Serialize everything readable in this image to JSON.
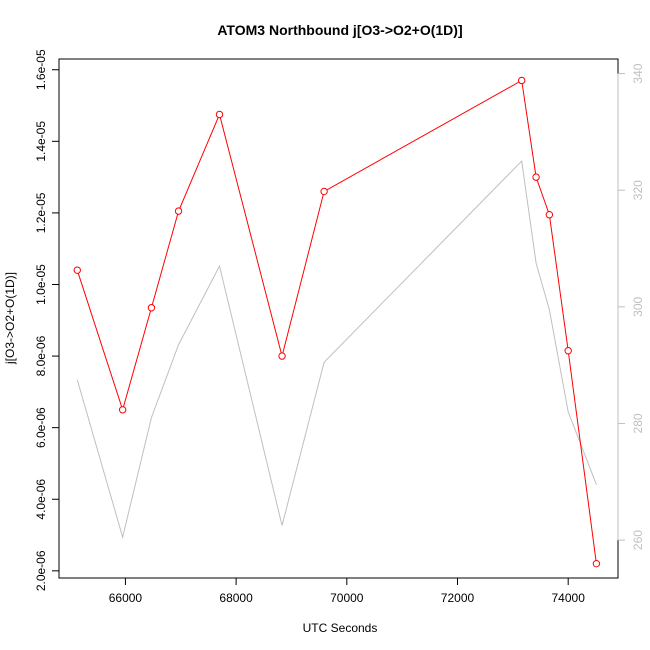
{
  "chart_data": {
    "type": "line",
    "title": "ATOM3 Northbound j[O3->O2+O(1D)]",
    "xlabel": "UTC Seconds",
    "ylabel": "j[O3->O2+O(1D)]",
    "xlim": [
      64800,
      74900
    ],
    "ylim": [
      1.8e-06,
      1.63e-05
    ],
    "y2lim": [
      253.5,
      342.5
    ],
    "x_ticks": [
      66000,
      68000,
      70000,
      72000,
      74000
    ],
    "x_tick_labels": [
      "66000",
      "68000",
      "70000",
      "72000",
      "74000"
    ],
    "y_ticks": [
      2e-06,
      4e-06,
      6e-06,
      8e-06,
      1e-05,
      1.2e-05,
      1.4e-05,
      1.6e-05
    ],
    "y_tick_labels": [
      "2.0e-06",
      "4.0e-06",
      "6.0e-06",
      "8.0e-06",
      "1.0e-05",
      "1.2e-05",
      "1.4e-05",
      "1.6e-05"
    ],
    "y2_ticks": [
      260,
      280,
      300,
      320,
      340
    ],
    "y2_tick_labels": [
      "260",
      "280",
      "300",
      "320",
      "340"
    ],
    "grid": false,
    "legend": "none",
    "series": [
      {
        "axis": "left",
        "color": "#ff0000",
        "marker": "open-circle",
        "x": [
          65130,
          65950,
          66470,
          66960,
          67700,
          68830,
          69590,
          73160,
          73420,
          73660,
          74000,
          74510
        ],
        "values": [
          1.04e-05,
          6.5e-06,
          9.35e-06,
          1.205e-05,
          1.475e-05,
          8e-06,
          1.26e-05,
          1.57e-05,
          1.3e-05,
          1.195e-05,
          8.15e-06,
          2.2e-06
        ]
      },
      {
        "axis": "right",
        "color": "#bfbfbf",
        "marker": "none",
        "x": [
          65130,
          65950,
          66470,
          66960,
          67700,
          68830,
          69590,
          73160,
          73420,
          73660,
          74000,
          74510
        ],
        "values": [
          287.5,
          260.5,
          281.0,
          293.5,
          307.0,
          262.5,
          290.5,
          325.0,
          307.5,
          299.5,
          282.0,
          269.5
        ]
      }
    ]
  }
}
